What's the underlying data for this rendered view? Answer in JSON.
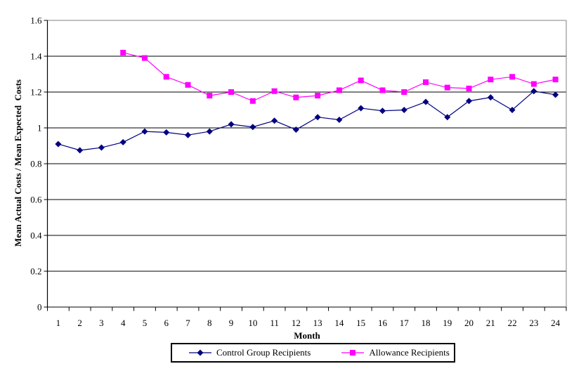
{
  "chart_data": {
    "type": "line",
    "title": "",
    "xlabel": "Month",
    "ylabel": "Mean Actual Costs / Mean Expected  Costs",
    "x": [
      1,
      2,
      3,
      4,
      5,
      6,
      7,
      8,
      9,
      10,
      11,
      12,
      13,
      14,
      15,
      16,
      17,
      18,
      19,
      20,
      21,
      22,
      23,
      24
    ],
    "ylim": [
      0,
      1.6
    ],
    "ytick_step": 0.2,
    "grid": "horizontal",
    "legend_position": "bottom",
    "background_color": "#FFFFFF",
    "axis_color": "#000000",
    "plot_border_color": "#808080",
    "series": [
      {
        "name": "Control Group Recipients",
        "color": "#000080",
        "marker": "diamond",
        "values": [
          0.91,
          0.875,
          0.89,
          0.92,
          0.98,
          0.975,
          0.96,
          0.98,
          1.02,
          1.005,
          1.04,
          0.99,
          1.06,
          1.045,
          1.11,
          1.095,
          1.1,
          1.145,
          1.06,
          1.15,
          1.17,
          1.1,
          1.205,
          1.185
        ]
      },
      {
        "name": "Allowance Recipients",
        "color": "#FF00FF",
        "marker": "square",
        "values": [
          null,
          null,
          null,
          1.42,
          1.39,
          1.285,
          1.24,
          1.18,
          1.2,
          1.15,
          1.205,
          1.17,
          1.18,
          1.21,
          1.265,
          1.21,
          1.2,
          1.255,
          1.225,
          1.22,
          1.27,
          1.285,
          1.245,
          1.27
        ]
      }
    ]
  }
}
